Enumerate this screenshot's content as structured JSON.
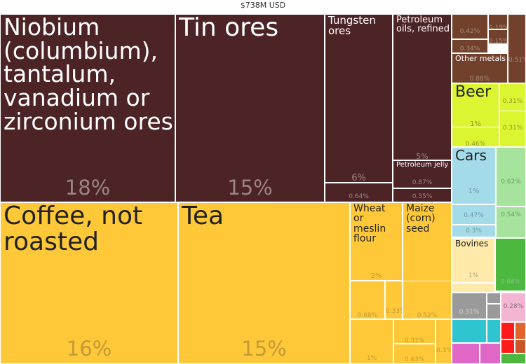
{
  "header": {
    "title": "$738M USD"
  },
  "chart_data": {
    "type": "treemap",
    "title": "$738M USD",
    "tiles": [
      {
        "label": "Niobium\n(columbium),\ntantalum,\nvanadium or\nzirconium ores",
        "value": 18,
        "pct_label": "18%",
        "group": "ores",
        "color": "#4d2426"
      },
      {
        "label": "Tin ores",
        "value": 15,
        "pct_label": "15%",
        "group": "ores",
        "color": "#4d2426"
      },
      {
        "label": "Tungsten\nores",
        "value": 6,
        "pct_label": "6%",
        "group": "ores",
        "color": "#4d2426"
      },
      {
        "label": "Petroleum\noils, refined",
        "value": 5,
        "pct_label": "5%",
        "group": "ores",
        "color": "#4d2426"
      },
      {
        "label": "Petroleum jelly",
        "value": 0.87,
        "pct_label": "0.87%",
        "group": "ores",
        "color": "#4d2426"
      },
      {
        "label": "",
        "value": 0.64,
        "pct_label": "0.64%",
        "group": "ores",
        "color": "#4d2426"
      },
      {
        "label": "",
        "value": 0.35,
        "pct_label": "0.35%",
        "group": "ores",
        "color": "#4d2426"
      },
      {
        "label": "Coffee, not\nroasted",
        "value": 16,
        "pct_label": "16%",
        "group": "vegetable",
        "color": "#ffc838"
      },
      {
        "label": "Tea",
        "value": 15,
        "pct_label": "15%",
        "group": "vegetable",
        "color": "#ffc838"
      },
      {
        "label": "Wheat\nor\nmeslin\nflour",
        "value": 2,
        "pct_label": "2%",
        "group": "vegetable",
        "color": "#ffc838"
      },
      {
        "label": "Maize\n(corn)\nseed",
        "value": 3,
        "pct_label": "3%",
        "group": "vegetable",
        "color": "#ffc838"
      },
      {
        "label": "",
        "value": 0.68,
        "pct_label": "0.68%",
        "group": "vegetable",
        "color": "#ffc838"
      },
      {
        "label": "",
        "value": 0.33,
        "pct_label": "0.33%",
        "group": "vegetable",
        "color": "#ffc838"
      },
      {
        "label": "",
        "value": 0.52,
        "pct_label": "0.52%",
        "group": "vegetable",
        "color": "#ffc838"
      },
      {
        "label": "",
        "value": 1,
        "pct_label": "1%",
        "group": "vegetable",
        "color": "#ffc838"
      },
      {
        "label": "",
        "value": 0.31,
        "pct_label": "0.31%",
        "group": "vegetable",
        "color": "#ffc838"
      },
      {
        "label": "",
        "value": 0.43,
        "pct_label": "0.43%",
        "group": "vegetable",
        "color": "#ffc838"
      },
      {
        "label": "",
        "value": 0.3,
        "pct_label": "0.3%",
        "group": "vegetable",
        "color": "#ffc838"
      },
      {
        "label": "",
        "value": 0.42,
        "pct_label": "0.42%",
        "group": "metals",
        "color": "#72412c"
      },
      {
        "label": "",
        "value": 0.19,
        "pct_label": "0.19%",
        "group": "metals",
        "color": "#72412c"
      },
      {
        "label": "",
        "value": 0.34,
        "pct_label": "0.34%",
        "group": "metals",
        "color": "#72412c"
      },
      {
        "label": "",
        "value": 0.15,
        "pct_label": "0.15%",
        "group": "metals",
        "color": "#72412c"
      },
      {
        "label": "",
        "value": 0.51,
        "pct_label": "0.51%",
        "group": "metals",
        "color": "#72412c"
      },
      {
        "label": "Other metals",
        "value": 0.88,
        "pct_label": "0.88%",
        "group": "metals",
        "color": "#72412c"
      },
      {
        "label": "Beer",
        "value": 1,
        "pct_label": "1%",
        "group": "foodstuffs",
        "color": "#dbf531"
      },
      {
        "label": "",
        "value": 0.46,
        "pct_label": "0.46%",
        "group": "foodstuffs",
        "color": "#dbf531"
      },
      {
        "label": "",
        "value": 0.31,
        "pct_label": "0.31%",
        "group": "foodstuffs",
        "color": "#dbf531"
      },
      {
        "label": "",
        "value": 0.31,
        "pct_label": "0.31%",
        "group": "foodstuffs",
        "color": "#dbf531"
      },
      {
        "label": "Cars",
        "value": 1,
        "pct_label": "1%",
        "group": "transportation",
        "color": "#a4dbe8"
      },
      {
        "label": "",
        "value": 0.47,
        "pct_label": "0.47%",
        "group": "transportation",
        "color": "#a4dbe8"
      },
      {
        "label": "",
        "value": 0.3,
        "pct_label": "0.3%",
        "group": "transportation",
        "color": "#a4dbe8"
      },
      {
        "label": "",
        "value": 0.62,
        "pct_label": "0.62%",
        "group": "machines",
        "color": "#a6e39c"
      },
      {
        "label": "",
        "value": 0.54,
        "pct_label": "0.54%",
        "group": "machines",
        "color": "#a6e39c"
      },
      {
        "label": "Bovines",
        "value": 1,
        "pct_label": "1%",
        "group": "animals",
        "color": "#ffeaaa"
      },
      {
        "label": "",
        "value": 0.84,
        "pct_label": "0.84%",
        "group": "green",
        "color": "#4db840"
      },
      {
        "label": "",
        "value": 0.31,
        "pct_label": "0.31%",
        "group": "misc",
        "color": "#9a9a9a"
      },
      {
        "label": "",
        "value": 0.28,
        "pct_label": "0.28%",
        "group": "misc",
        "color": "#f3b6d2"
      }
    ]
  }
}
